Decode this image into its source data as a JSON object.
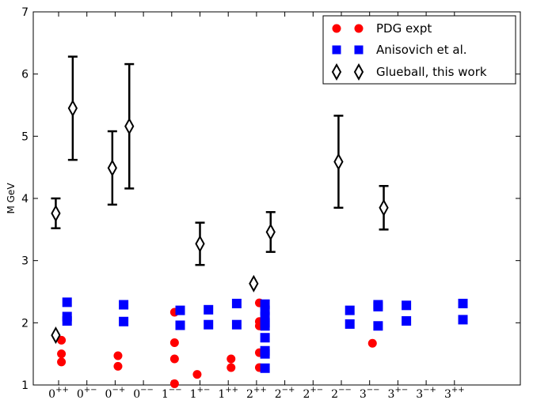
{
  "chart_data": {
    "type": "scatter",
    "ylabel": "M GeV",
    "ylim": [
      1,
      7
    ],
    "yticks": [
      1,
      2,
      3,
      4,
      5,
      6,
      7
    ],
    "categories": [
      {
        "base": "0",
        "sup": "++"
      },
      {
        "base": "0",
        "sup": "+−"
      },
      {
        "base": "0",
        "sup": "−+"
      },
      {
        "base": "0",
        "sup": "−−"
      },
      {
        "base": "1",
        "sup": "−−"
      },
      {
        "base": "1",
        "sup": "+−"
      },
      {
        "base": "1",
        "sup": "++"
      },
      {
        "base": "2",
        "sup": "++"
      },
      {
        "base": "2",
        "sup": "−+"
      },
      {
        "base": "2",
        "sup": "+−"
      },
      {
        "base": "2",
        "sup": "−−"
      },
      {
        "base": "3",
        "sup": "−−"
      },
      {
        "base": "3",
        "sup": "+−"
      },
      {
        "base": "3",
        "sup": "−+"
      },
      {
        "base": "3",
        "sup": "++"
      }
    ],
    "legend": {
      "placement": "top-right",
      "entries": [
        "PDG expt",
        "Anisovich et al.",
        "Glueball, this work"
      ]
    },
    "colors": {
      "pdg": "#ff0000",
      "anisovich": "#0000ff",
      "glueball": "#000000"
    },
    "series": [
      {
        "name": "PDG expt",
        "marker": "circle",
        "points": [
          {
            "x": 0.1,
            "y": 1.72
          },
          {
            "x": 0.1,
            "y": 1.5
          },
          {
            "x": 0.1,
            "y": 1.37
          },
          {
            "x": 2.1,
            "y": 1.47
          },
          {
            "x": 2.1,
            "y": 1.3
          },
          {
            "x": 4.1,
            "y": 2.17
          },
          {
            "x": 4.1,
            "y": 1.68
          },
          {
            "x": 4.1,
            "y": 1.42
          },
          {
            "x": 4.1,
            "y": 1.02
          },
          {
            "x": 4.9,
            "y": 1.17
          },
          {
            "x": 6.1,
            "y": 1.42
          },
          {
            "x": 6.1,
            "y": 1.28
          },
          {
            "x": 7.1,
            "y": 2.32
          },
          {
            "x": 7.1,
            "y": 2.02
          },
          {
            "x": 7.1,
            "y": 1.95
          },
          {
            "x": 7.1,
            "y": 1.52
          },
          {
            "x": 7.1,
            "y": 1.28
          },
          {
            "x": 11.1,
            "y": 1.67
          }
        ]
      },
      {
        "name": "Anisovich et al.",
        "marker": "square",
        "points": [
          {
            "x": 0.3,
            "y": 2.33
          },
          {
            "x": 0.3,
            "y": 2.1
          },
          {
            "x": 0.3,
            "y": 2.03
          },
          {
            "x": 2.3,
            "y": 2.29
          },
          {
            "x": 2.3,
            "y": 2.02
          },
          {
            "x": 4.3,
            "y": 2.2
          },
          {
            "x": 4.3,
            "y": 1.96
          },
          {
            "x": 5.3,
            "y": 2.21
          },
          {
            "x": 5.3,
            "y": 1.97
          },
          {
            "x": 6.3,
            "y": 2.31
          },
          {
            "x": 6.3,
            "y": 1.97
          },
          {
            "x": 7.3,
            "y": 2.3
          },
          {
            "x": 7.3,
            "y": 2.2
          },
          {
            "x": 7.3,
            "y": 2.1
          },
          {
            "x": 7.3,
            "y": 2.0
          },
          {
            "x": 7.3,
            "y": 1.95
          },
          {
            "x": 7.3,
            "y": 1.76
          },
          {
            "x": 7.3,
            "y": 1.55
          },
          {
            "x": 7.3,
            "y": 1.5
          },
          {
            "x": 7.3,
            "y": 1.27
          },
          {
            "x": 10.3,
            "y": 2.2
          },
          {
            "x": 10.3,
            "y": 1.98
          },
          {
            "x": 11.3,
            "y": 2.29
          },
          {
            "x": 11.3,
            "y": 2.26
          },
          {
            "x": 11.3,
            "y": 1.95
          },
          {
            "x": 12.3,
            "y": 2.28
          },
          {
            "x": 12.3,
            "y": 2.03
          },
          {
            "x": 14.3,
            "y": 2.31
          },
          {
            "x": 14.3,
            "y": 2.05
          }
        ]
      },
      {
        "name": "Glueball, this work",
        "marker": "diamond",
        "points": [
          {
            "x": -0.1,
            "y": 1.8,
            "err": 0
          },
          {
            "x": -0.1,
            "y": 3.76,
            "err": 0.24
          },
          {
            "x": 0.5,
            "y": 5.45,
            "err": 0.83
          },
          {
            "x": 1.9,
            "y": 4.49,
            "err": 0.59
          },
          {
            "x": 2.5,
            "y": 5.16,
            "err": 1.0
          },
          {
            "x": 5.0,
            "y": 3.27,
            "err": 0.34
          },
          {
            "x": 6.9,
            "y": 2.63,
            "err": 0
          },
          {
            "x": 7.5,
            "y": 3.46,
            "err": 0.32
          },
          {
            "x": 9.9,
            "y": 4.59,
            "err": 0.74
          },
          {
            "x": 11.5,
            "y": 3.85,
            "err": 0.35
          }
        ]
      }
    ]
  }
}
